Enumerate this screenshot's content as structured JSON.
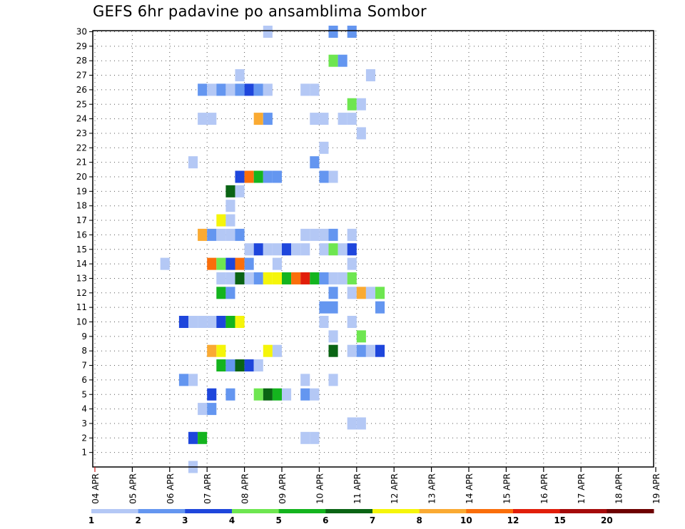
{
  "chart_data": {
    "type": "heatmap",
    "title": "GEFS 6hr padavine po ansamblima Sombor",
    "x_tick_labels": [
      "04 APR",
      "05 APR",
      "06 APR",
      "07 APR",
      "08 APR",
      "09 APR",
      "10 APR",
      "11 APR",
      "12 APR",
      "13 APR",
      "14 APR",
      "15 APR",
      "16 APR",
      "17 APR",
      "18 APR",
      "19 APR"
    ],
    "y_tick_labels": [
      "1",
      "2",
      "3",
      "4",
      "5",
      "6",
      "7",
      "8",
      "9",
      "10",
      "11",
      "12",
      "13",
      "14",
      "15",
      "16",
      "17",
      "18",
      "19",
      "20",
      "21",
      "22",
      "23",
      "24",
      "25",
      "26",
      "27",
      "28",
      "29",
      "30"
    ],
    "ylim": [
      0,
      30
    ],
    "grid": true,
    "colorbar": {
      "labels": [
        "1",
        "2",
        "3",
        "4",
        "5",
        "6",
        "7",
        "8",
        "10",
        "12",
        "15",
        "20"
      ],
      "colors": [
        "#b4c8f5",
        "#6496f0",
        "#1e46dc",
        "#6ee650",
        "#14b41e",
        "#0a6414",
        "#f5f50a",
        "#faaa32",
        "#fa6e0a",
        "#e11e0a",
        "#a50a0a",
        "#6e0000"
      ]
    },
    "cells": [
      {
        "member": 30,
        "step": 19,
        "value": 1
      },
      {
        "member": 30,
        "step": 26,
        "value": 2
      },
      {
        "member": 30,
        "step": 28,
        "value": 2
      },
      {
        "member": 28,
        "step": 26,
        "value": 4
      },
      {
        "member": 28,
        "step": 27,
        "value": 2
      },
      {
        "member": 27,
        "step": 16,
        "value": 1
      },
      {
        "member": 27,
        "step": 30,
        "value": 1
      },
      {
        "member": 26,
        "step": 12,
        "value": 2
      },
      {
        "member": 26,
        "step": 13,
        "value": 1
      },
      {
        "member": 26,
        "step": 14,
        "value": 2
      },
      {
        "member": 26,
        "step": 15,
        "value": 1
      },
      {
        "member": 26,
        "step": 16,
        "value": 2
      },
      {
        "member": 26,
        "step": 17,
        "value": 3
      },
      {
        "member": 26,
        "step": 18,
        "value": 2
      },
      {
        "member": 26,
        "step": 19,
        "value": 1
      },
      {
        "member": 26,
        "step": 23,
        "value": 1
      },
      {
        "member": 26,
        "step": 24,
        "value": 1
      },
      {
        "member": 25,
        "step": 28,
        "value": 4
      },
      {
        "member": 25,
        "step": 29,
        "value": 1
      },
      {
        "member": 24,
        "step": 12,
        "value": 1
      },
      {
        "member": 24,
        "step": 13,
        "value": 1
      },
      {
        "member": 24,
        "step": 18,
        "value": 8
      },
      {
        "member": 24,
        "step": 19,
        "value": 2
      },
      {
        "member": 24,
        "step": 24,
        "value": 1
      },
      {
        "member": 24,
        "step": 25,
        "value": 1
      },
      {
        "member": 24,
        "step": 27,
        "value": 1
      },
      {
        "member": 24,
        "step": 28,
        "value": 1
      },
      {
        "member": 23,
        "step": 29,
        "value": 1
      },
      {
        "member": 22,
        "step": 25,
        "value": 1
      },
      {
        "member": 21,
        "step": 11,
        "value": 1
      },
      {
        "member": 21,
        "step": 24,
        "value": 2
      },
      {
        "member": 20,
        "step": 16,
        "value": 3
      },
      {
        "member": 20,
        "step": 17,
        "value": 10
      },
      {
        "member": 20,
        "step": 18,
        "value": 5
      },
      {
        "member": 20,
        "step": 19,
        "value": 2
      },
      {
        "member": 20,
        "step": 20,
        "value": 2
      },
      {
        "member": 20,
        "step": 25,
        "value": 2
      },
      {
        "member": 20,
        "step": 26,
        "value": 1
      },
      {
        "member": 19,
        "step": 15,
        "value": 6
      },
      {
        "member": 19,
        "step": 16,
        "value": 1
      },
      {
        "member": 18,
        "step": 15,
        "value": 1
      },
      {
        "member": 17,
        "step": 14,
        "value": 7
      },
      {
        "member": 17,
        "step": 15,
        "value": 1
      },
      {
        "member": 16,
        "step": 12,
        "value": 8
      },
      {
        "member": 16,
        "step": 13,
        "value": 2
      },
      {
        "member": 16,
        "step": 14,
        "value": 1
      },
      {
        "member": 16,
        "step": 15,
        "value": 1
      },
      {
        "member": 16,
        "step": 16,
        "value": 2
      },
      {
        "member": 16,
        "step": 23,
        "value": 1
      },
      {
        "member": 16,
        "step": 24,
        "value": 1
      },
      {
        "member": 16,
        "step": 25,
        "value": 1
      },
      {
        "member": 16,
        "step": 26,
        "value": 2
      },
      {
        "member": 16,
        "step": 28,
        "value": 1
      },
      {
        "member": 15,
        "step": 17,
        "value": 1
      },
      {
        "member": 15,
        "step": 18,
        "value": 3
      },
      {
        "member": 15,
        "step": 19,
        "value": 1
      },
      {
        "member": 15,
        "step": 20,
        "value": 1
      },
      {
        "member": 15,
        "step": 21,
        "value": 3
      },
      {
        "member": 15,
        "step": 22,
        "value": 1
      },
      {
        "member": 15,
        "step": 23,
        "value": 1
      },
      {
        "member": 15,
        "step": 25,
        "value": 1
      },
      {
        "member": 15,
        "step": 26,
        "value": 4
      },
      {
        "member": 15,
        "step": 27,
        "value": 1
      },
      {
        "member": 15,
        "step": 28,
        "value": 3
      },
      {
        "member": 14,
        "step": 8,
        "value": 1
      },
      {
        "member": 14,
        "step": 13,
        "value": 10
      },
      {
        "member": 14,
        "step": 14,
        "value": 4
      },
      {
        "member": 14,
        "step": 15,
        "value": 3
      },
      {
        "member": 14,
        "step": 16,
        "value": 10
      },
      {
        "member": 14,
        "step": 17,
        "value": 2
      },
      {
        "member": 14,
        "step": 20,
        "value": 1
      },
      {
        "member": 14,
        "step": 28,
        "value": 1
      },
      {
        "member": 13,
        "step": 14,
        "value": 1
      },
      {
        "member": 13,
        "step": 15,
        "value": 1
      },
      {
        "member": 13,
        "step": 16,
        "value": 6
      },
      {
        "member": 13,
        "step": 17,
        "value": 1
      },
      {
        "member": 13,
        "step": 18,
        "value": 2
      },
      {
        "member": 13,
        "step": 19,
        "value": 7
      },
      {
        "member": 13,
        "step": 20,
        "value": 7
      },
      {
        "member": 13,
        "step": 21,
        "value": 5
      },
      {
        "member": 13,
        "step": 22,
        "value": 10
      },
      {
        "member": 13,
        "step": 23,
        "value": 12
      },
      {
        "member": 13,
        "step": 24,
        "value": 5
      },
      {
        "member": 13,
        "step": 25,
        "value": 2
      },
      {
        "member": 13,
        "step": 26,
        "value": 1
      },
      {
        "member": 13,
        "step": 27,
        "value": 1
      },
      {
        "member": 13,
        "step": 28,
        "value": 4
      },
      {
        "member": 12,
        "step": 14,
        "value": 5
      },
      {
        "member": 12,
        "step": 15,
        "value": 2
      },
      {
        "member": 12,
        "step": 26,
        "value": 2
      },
      {
        "member": 12,
        "step": 28,
        "value": 1
      },
      {
        "member": 12,
        "step": 29,
        "value": 8
      },
      {
        "member": 12,
        "step": 30,
        "value": 1
      },
      {
        "member": 12,
        "step": 31,
        "value": 4
      },
      {
        "member": 11,
        "step": 25,
        "value": 2
      },
      {
        "member": 11,
        "step": 26,
        "value": 2
      },
      {
        "member": 11,
        "step": 31,
        "value": 2
      },
      {
        "member": 10,
        "step": 10,
        "value": 3
      },
      {
        "member": 10,
        "step": 11,
        "value": 1
      },
      {
        "member": 10,
        "step": 12,
        "value": 1
      },
      {
        "member": 10,
        "step": 13,
        "value": 1
      },
      {
        "member": 10,
        "step": 14,
        "value": 3
      },
      {
        "member": 10,
        "step": 15,
        "value": 5
      },
      {
        "member": 10,
        "step": 16,
        "value": 7
      },
      {
        "member": 10,
        "step": 25,
        "value": 1
      },
      {
        "member": 10,
        "step": 28,
        "value": 1
      },
      {
        "member": 9,
        "step": 26,
        "value": 1
      },
      {
        "member": 9,
        "step": 29,
        "value": 4
      },
      {
        "member": 8,
        "step": 13,
        "value": 8
      },
      {
        "member": 8,
        "step": 14,
        "value": 7
      },
      {
        "member": 8,
        "step": 19,
        "value": 7
      },
      {
        "member": 8,
        "step": 20,
        "value": 1
      },
      {
        "member": 8,
        "step": 26,
        "value": 6
      },
      {
        "member": 8,
        "step": 28,
        "value": 1
      },
      {
        "member": 8,
        "step": 29,
        "value": 2
      },
      {
        "member": 8,
        "step": 30,
        "value": 1
      },
      {
        "member": 8,
        "step": 31,
        "value": 3
      },
      {
        "member": 7,
        "step": 14,
        "value": 5
      },
      {
        "member": 7,
        "step": 15,
        "value": 2
      },
      {
        "member": 7,
        "step": 16,
        "value": 6
      },
      {
        "member": 7,
        "step": 17,
        "value": 3
      },
      {
        "member": 7,
        "step": 18,
        "value": 1
      },
      {
        "member": 6,
        "step": 10,
        "value": 2
      },
      {
        "member": 6,
        "step": 11,
        "value": 1
      },
      {
        "member": 6,
        "step": 23,
        "value": 1
      },
      {
        "member": 6,
        "step": 26,
        "value": 1
      },
      {
        "member": 5,
        "step": 13,
        "value": 3
      },
      {
        "member": 5,
        "step": 15,
        "value": 2
      },
      {
        "member": 5,
        "step": 18,
        "value": 4
      },
      {
        "member": 5,
        "step": 19,
        "value": 6
      },
      {
        "member": 5,
        "step": 20,
        "value": 5
      },
      {
        "member": 5,
        "step": 21,
        "value": 1
      },
      {
        "member": 5,
        "step": 23,
        "value": 2
      },
      {
        "member": 5,
        "step": 24,
        "value": 1
      },
      {
        "member": 4,
        "step": 12,
        "value": 1
      },
      {
        "member": 4,
        "step": 13,
        "value": 2
      },
      {
        "member": 3,
        "step": 28,
        "value": 1
      },
      {
        "member": 3,
        "step": 29,
        "value": 1
      },
      {
        "member": 2,
        "step": 11,
        "value": 3
      },
      {
        "member": 2,
        "step": 12,
        "value": 5
      },
      {
        "member": 2,
        "step": 23,
        "value": 1
      },
      {
        "member": 2,
        "step": 24,
        "value": 1
      },
      {
        "member": 0,
        "step": 11,
        "value": 1
      }
    ]
  }
}
